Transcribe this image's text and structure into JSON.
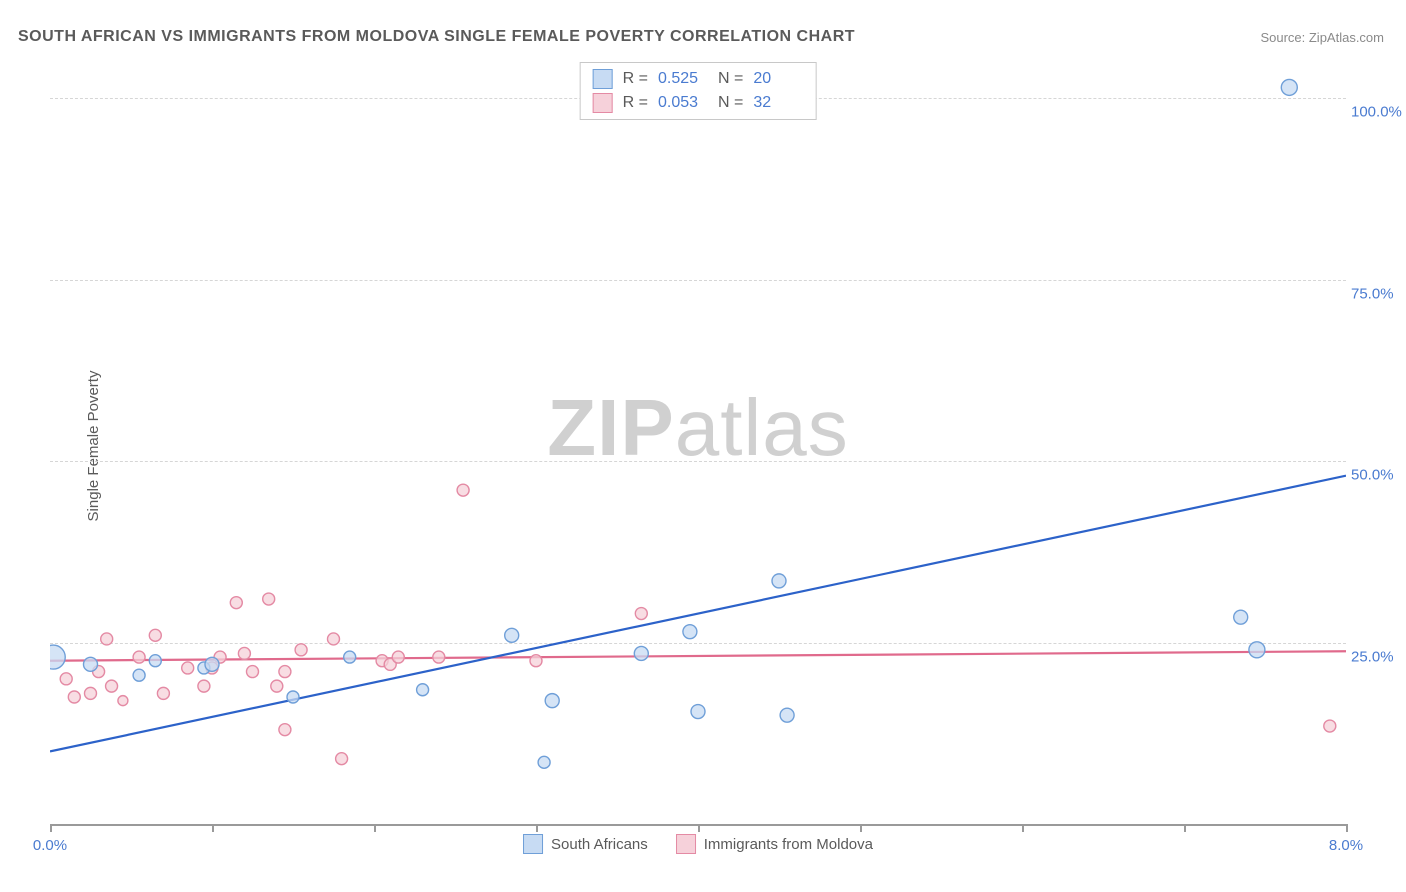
{
  "title": "SOUTH AFRICAN VS IMMIGRANTS FROM MOLDOVA SINGLE FEMALE POVERTY CORRELATION CHART",
  "source_prefix": "Source: ",
  "source_name": "ZipAtlas.com",
  "y_axis_label": "Single Female Poverty",
  "watermark_bold": "ZIP",
  "watermark_light": "atlas",
  "chart": {
    "type": "scatter",
    "xlim": [
      0.0,
      8.0
    ],
    "ylim": [
      0.0,
      105.0
    ],
    "x_ticks": [
      0.0,
      1.0,
      2.0,
      3.0,
      4.0,
      5.0,
      6.0,
      7.0,
      8.0
    ],
    "x_tick_labels": {
      "0": "0.0%",
      "8": "8.0%"
    },
    "y_gridlines": [
      25.0,
      50.0,
      75.0,
      100.0
    ],
    "y_tick_labels": {
      "25": "25.0%",
      "50": "50.0%",
      "75": "75.0%",
      "100": "100.0%"
    },
    "grid_color": "#d6d6d6",
    "axis_color": "#9a9a9a",
    "background_color": "#ffffff",
    "series": [
      {
        "id": "south_africans",
        "label": "South Africans",
        "fill": "#c7dbf3",
        "stroke": "#6f9fd8",
        "line_color": "#2c62c9",
        "R": "0.525",
        "N": "20",
        "regression": {
          "x1": 0.0,
          "y1": 10.0,
          "x2": 8.0,
          "y2": 48.0
        },
        "points": [
          {
            "x": 0.02,
            "y": 23.0,
            "r": 12
          },
          {
            "x": 0.25,
            "y": 22.0,
            "r": 7
          },
          {
            "x": 0.55,
            "y": 20.5,
            "r": 6
          },
          {
            "x": 0.65,
            "y": 22.5,
            "r": 6
          },
          {
            "x": 0.95,
            "y": 21.5,
            "r": 6
          },
          {
            "x": 1.0,
            "y": 22.0,
            "r": 7
          },
          {
            "x": 1.5,
            "y": 17.5,
            "r": 6
          },
          {
            "x": 1.85,
            "y": 23.0,
            "r": 6
          },
          {
            "x": 2.3,
            "y": 18.5,
            "r": 6
          },
          {
            "x": 2.85,
            "y": 26.0,
            "r": 7
          },
          {
            "x": 3.1,
            "y": 17.0,
            "r": 7
          },
          {
            "x": 3.05,
            "y": 8.5,
            "r": 6
          },
          {
            "x": 3.65,
            "y": 23.5,
            "r": 7
          },
          {
            "x": 3.95,
            "y": 26.5,
            "r": 7
          },
          {
            "x": 4.0,
            "y": 15.5,
            "r": 7
          },
          {
            "x": 4.5,
            "y": 33.5,
            "r": 7
          },
          {
            "x": 4.55,
            "y": 15.0,
            "r": 7
          },
          {
            "x": 7.35,
            "y": 28.5,
            "r": 7
          },
          {
            "x": 7.45,
            "y": 24.0,
            "r": 8
          },
          {
            "x": 7.65,
            "y": 101.5,
            "r": 8
          }
        ]
      },
      {
        "id": "moldova",
        "label": "Immigrants from Moldova",
        "fill": "#f6d1da",
        "stroke": "#e48aa4",
        "line_color": "#e06a8c",
        "R": "0.053",
        "N": "32",
        "regression": {
          "x1": 0.0,
          "y1": 22.5,
          "x2": 8.0,
          "y2": 23.8
        },
        "points": [
          {
            "x": 0.1,
            "y": 20.0,
            "r": 6
          },
          {
            "x": 0.15,
            "y": 17.5,
            "r": 6
          },
          {
            "x": 0.25,
            "y": 18.0,
            "r": 6
          },
          {
            "x": 0.3,
            "y": 21.0,
            "r": 6
          },
          {
            "x": 0.35,
            "y": 25.5,
            "r": 6
          },
          {
            "x": 0.38,
            "y": 19.0,
            "r": 6
          },
          {
            "x": 0.45,
            "y": 17.0,
            "r": 5
          },
          {
            "x": 0.55,
            "y": 23.0,
            "r": 6
          },
          {
            "x": 0.65,
            "y": 26.0,
            "r": 6
          },
          {
            "x": 0.7,
            "y": 18.0,
            "r": 6
          },
          {
            "x": 0.85,
            "y": 21.5,
            "r": 6
          },
          {
            "x": 0.95,
            "y": 19.0,
            "r": 6
          },
          {
            "x": 1.0,
            "y": 21.5,
            "r": 6
          },
          {
            "x": 1.05,
            "y": 23.0,
            "r": 6
          },
          {
            "x": 1.15,
            "y": 30.5,
            "r": 6
          },
          {
            "x": 1.2,
            "y": 23.5,
            "r": 6
          },
          {
            "x": 1.25,
            "y": 21.0,
            "r": 6
          },
          {
            "x": 1.35,
            "y": 31.0,
            "r": 6
          },
          {
            "x": 1.4,
            "y": 19.0,
            "r": 6
          },
          {
            "x": 1.45,
            "y": 21.0,
            "r": 6
          },
          {
            "x": 1.45,
            "y": 13.0,
            "r": 6
          },
          {
            "x": 1.55,
            "y": 24.0,
            "r": 6
          },
          {
            "x": 1.75,
            "y": 25.5,
            "r": 6
          },
          {
            "x": 1.8,
            "y": 9.0,
            "r": 6
          },
          {
            "x": 2.05,
            "y": 22.5,
            "r": 6
          },
          {
            "x": 2.1,
            "y": 22.0,
            "r": 6
          },
          {
            "x": 2.15,
            "y": 23.0,
            "r": 6
          },
          {
            "x": 2.4,
            "y": 23.0,
            "r": 6
          },
          {
            "x": 2.55,
            "y": 46.0,
            "r": 6
          },
          {
            "x": 3.0,
            "y": 22.5,
            "r": 6
          },
          {
            "x": 3.65,
            "y": 29.0,
            "r": 6
          },
          {
            "x": 7.9,
            "y": 13.5,
            "r": 6
          }
        ]
      }
    ]
  },
  "legend_labels": {
    "r_eq": "R  =",
    "n_eq": "N  ="
  }
}
